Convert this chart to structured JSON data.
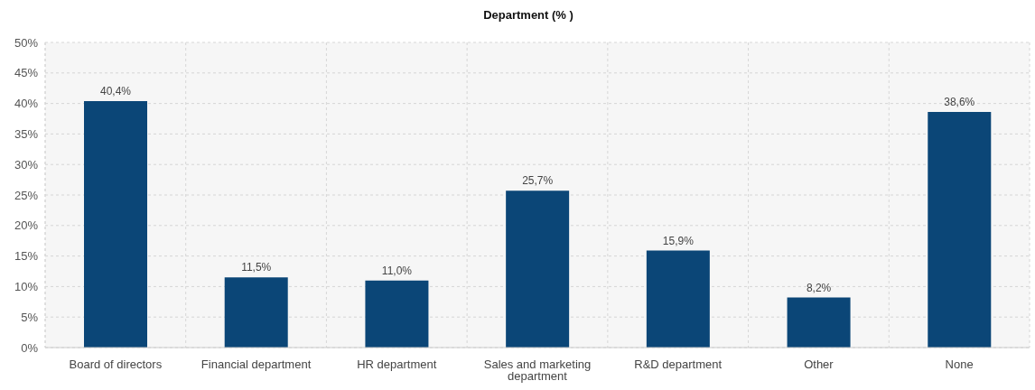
{
  "chart_data": {
    "type": "bar",
    "title": "Department (% )",
    "categories": [
      "Board of directors",
      "Financial department",
      "HR department",
      "Sales and marketing department",
      "R&D department",
      "Other",
      "None"
    ],
    "values": [
      40.4,
      11.5,
      11.0,
      25.7,
      15.9,
      8.2,
      38.6
    ],
    "value_labels": [
      "40,4%",
      "11,5%",
      "11,0%",
      "25,7%",
      "15,9%",
      "8,2%",
      "38,6%"
    ],
    "color": "#0b4677",
    "ylim": [
      0,
      50
    ],
    "yticks": [
      {
        "value": 0,
        "label": "0%"
      },
      {
        "value": 5,
        "label": "5%"
      },
      {
        "value": 10,
        "label": "10%"
      },
      {
        "value": 15,
        "label": "15%"
      },
      {
        "value": 20,
        "label": "20%"
      },
      {
        "value": 25,
        "label": "25%"
      },
      {
        "value": 30,
        "label": "30%"
      },
      {
        "value": 35,
        "label": "35%"
      },
      {
        "value": 40,
        "label": "40%"
      },
      {
        "value": 45,
        "label": "45%"
      },
      {
        "value": 50,
        "label": "50%"
      }
    ],
    "grid": true
  }
}
